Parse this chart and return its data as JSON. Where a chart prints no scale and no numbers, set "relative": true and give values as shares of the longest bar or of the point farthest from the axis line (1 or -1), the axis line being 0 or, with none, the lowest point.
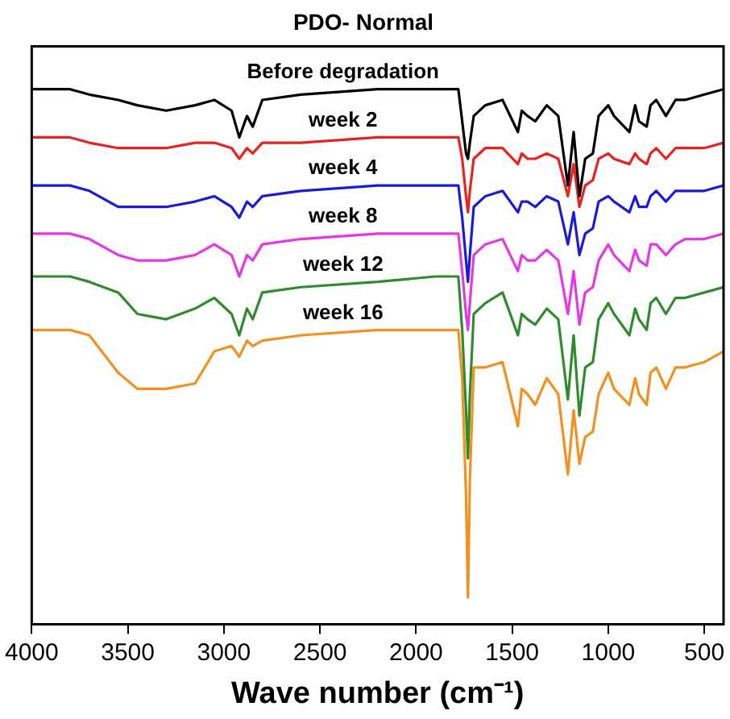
{
  "chart_data": {
    "type": "line",
    "title": "PDO- Normal",
    "xlabel": "Wave number (cm⁻¹)",
    "relative": true,
    "grid": false,
    "legend": false,
    "marker": "none",
    "line_style": "solid",
    "xlim": [
      4000,
      400
    ],
    "xticks": [
      4000,
      3500,
      3000,
      2500,
      2000,
      1500,
      1000,
      500
    ],
    "x": [
      4000,
      3800,
      3700,
      3550,
      3450,
      3300,
      3150,
      3050,
      2960,
      2920,
      2880,
      2850,
      2800,
      2600,
      2200,
      1900,
      1780,
      1760,
      1740,
      1730,
      1720,
      1700,
      1640,
      1550,
      1470,
      1450,
      1420,
      1380,
      1320,
      1260,
      1210,
      1180,
      1150,
      1120,
      1080,
      1050,
      1000,
      970,
      890,
      860,
      840,
      800,
      780,
      750,
      700,
      650,
      600,
      500,
      400
    ],
    "series": [
      {
        "name": "Before degradation",
        "color": "#000000",
        "values": [
          1.0,
          1.0,
          0.99,
          0.98,
          0.97,
          0.96,
          0.97,
          0.98,
          0.96,
          0.91,
          0.95,
          0.93,
          0.98,
          0.99,
          1.0,
          1.0,
          1.0,
          0.94,
          0.88,
          0.87,
          0.9,
          0.95,
          0.97,
          0.98,
          0.92,
          0.96,
          0.95,
          0.94,
          0.97,
          0.95,
          0.82,
          0.92,
          0.8,
          0.87,
          0.88,
          0.95,
          0.97,
          0.95,
          0.92,
          0.97,
          0.94,
          0.93,
          0.97,
          0.98,
          0.95,
          0.98,
          0.98,
          0.99,
          1.0
        ]
      },
      {
        "name": "week 2",
        "color": "#e8231f",
        "values": [
          0.91,
          0.91,
          0.9,
          0.89,
          0.89,
          0.89,
          0.9,
          0.9,
          0.89,
          0.87,
          0.89,
          0.88,
          0.9,
          0.9,
          0.91,
          0.91,
          0.91,
          0.87,
          0.8,
          0.77,
          0.81,
          0.87,
          0.89,
          0.89,
          0.86,
          0.88,
          0.87,
          0.87,
          0.88,
          0.87,
          0.8,
          0.86,
          0.78,
          0.82,
          0.83,
          0.87,
          0.88,
          0.87,
          0.86,
          0.88,
          0.87,
          0.86,
          0.88,
          0.89,
          0.87,
          0.89,
          0.89,
          0.89,
          0.9
        ]
      },
      {
        "name": "week 4",
        "color": "#1a1adc",
        "values": [
          0.82,
          0.82,
          0.81,
          0.78,
          0.78,
          0.78,
          0.79,
          0.8,
          0.78,
          0.76,
          0.79,
          0.78,
          0.8,
          0.81,
          0.82,
          0.82,
          0.82,
          0.76,
          0.68,
          0.64,
          0.69,
          0.78,
          0.8,
          0.81,
          0.77,
          0.79,
          0.79,
          0.78,
          0.8,
          0.79,
          0.71,
          0.77,
          0.69,
          0.73,
          0.74,
          0.79,
          0.8,
          0.79,
          0.77,
          0.8,
          0.78,
          0.78,
          0.8,
          0.81,
          0.79,
          0.81,
          0.81,
          0.81,
          0.82
        ]
      },
      {
        "name": "week 8",
        "color": "#e636e6",
        "values": [
          0.73,
          0.73,
          0.72,
          0.69,
          0.68,
          0.68,
          0.69,
          0.71,
          0.69,
          0.65,
          0.69,
          0.68,
          0.71,
          0.72,
          0.73,
          0.73,
          0.73,
          0.66,
          0.58,
          0.55,
          0.6,
          0.69,
          0.71,
          0.72,
          0.66,
          0.69,
          0.68,
          0.68,
          0.7,
          0.68,
          0.58,
          0.66,
          0.56,
          0.62,
          0.63,
          0.68,
          0.71,
          0.69,
          0.66,
          0.7,
          0.68,
          0.67,
          0.71,
          0.71,
          0.69,
          0.71,
          0.72,
          0.72,
          0.73
        ]
      },
      {
        "name": "week 12",
        "color": "#2e8b2e",
        "values": [
          0.65,
          0.65,
          0.64,
          0.62,
          0.58,
          0.57,
          0.59,
          0.61,
          0.58,
          0.54,
          0.59,
          0.57,
          0.62,
          0.63,
          0.64,
          0.65,
          0.65,
          0.55,
          0.4,
          0.31,
          0.43,
          0.58,
          0.6,
          0.62,
          0.54,
          0.58,
          0.57,
          0.56,
          0.59,
          0.57,
          0.42,
          0.54,
          0.39,
          0.48,
          0.49,
          0.57,
          0.6,
          0.58,
          0.54,
          0.59,
          0.57,
          0.55,
          0.6,
          0.61,
          0.58,
          0.61,
          0.61,
          0.62,
          0.63
        ]
      },
      {
        "name": "week 16",
        "color": "#f39020",
        "values": [
          0.55,
          0.55,
          0.54,
          0.47,
          0.44,
          0.44,
          0.45,
          0.51,
          0.52,
          0.5,
          0.53,
          0.52,
          0.53,
          0.54,
          0.55,
          0.55,
          0.55,
          0.46,
          0.24,
          0.05,
          0.27,
          0.48,
          0.48,
          0.49,
          0.37,
          0.44,
          0.43,
          0.41,
          0.46,
          0.43,
          0.28,
          0.4,
          0.3,
          0.35,
          0.36,
          0.43,
          0.47,
          0.44,
          0.41,
          0.46,
          0.43,
          0.41,
          0.47,
          0.48,
          0.44,
          0.48,
          0.48,
          0.49,
          0.51
        ]
      }
    ]
  }
}
